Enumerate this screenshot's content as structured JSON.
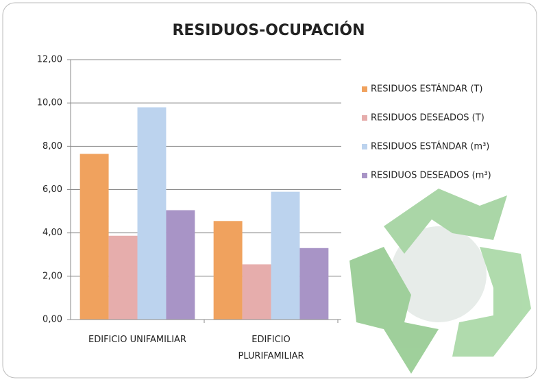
{
  "chart_data": {
    "type": "bar",
    "title": "RESIDUOS-OCUPACIÓN",
    "categories": [
      "EDIFICIO UNIFAMILIAR",
      "EDIFICIO PLURIFAMILIAR"
    ],
    "series": [
      {
        "name": "RESIDUOS ESTÁNDAR (T)",
        "color": "#f0a25e",
        "values": [
          7.65,
          4.55
        ]
      },
      {
        "name": "RESIDUOS DESEADOS (T)",
        "color": "#e6adac",
        "values": [
          3.87,
          2.55
        ]
      },
      {
        "name": "RESIDUOS ESTÁNDAR (m³)",
        "color": "#bcd3ee",
        "values": [
          9.8,
          5.9
        ]
      },
      {
        "name": "RESIDUOS DESEADOS (m³)",
        "color": "#a894c6",
        "values": [
          5.05,
          3.3
        ]
      }
    ],
    "ylim": [
      0,
      12
    ],
    "yticks": [
      {
        "value": 0,
        "label": "0,00"
      },
      {
        "value": 2,
        "label": "2,00"
      },
      {
        "value": 4,
        "label": "4,00"
      },
      {
        "value": 6,
        "label": "6,00"
      },
      {
        "value": 8,
        "label": "8,00"
      },
      {
        "value": 10,
        "label": "10,00"
      },
      {
        "value": 12,
        "label": "12,00"
      }
    ],
    "grid": true,
    "legend": "right"
  }
}
